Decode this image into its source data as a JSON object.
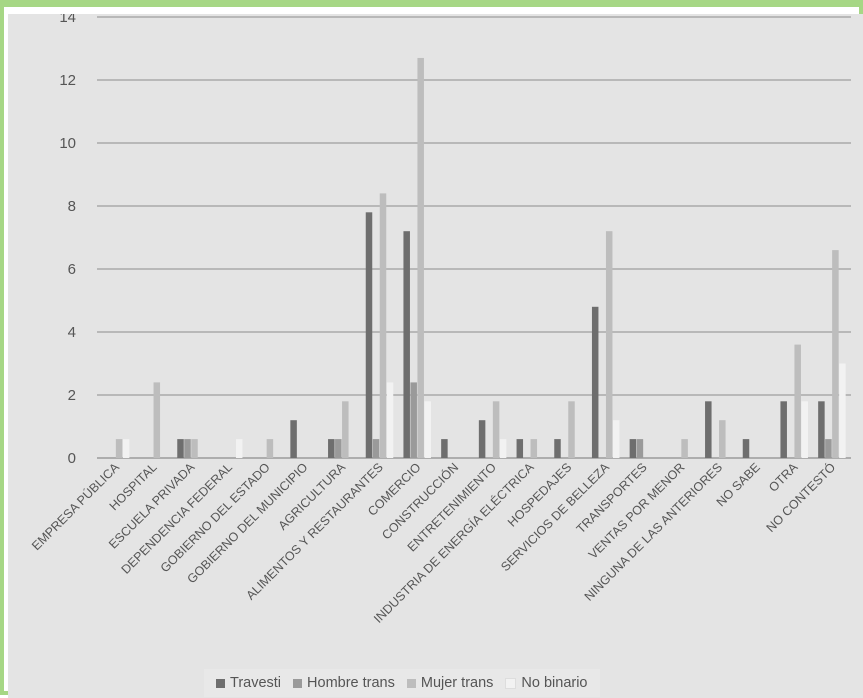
{
  "colors": {
    "frame_border": "#a6d785",
    "plot_background": "#e4e4e4",
    "gridline": "#8c8c8c",
    "text": "#555555"
  },
  "chart_data": {
    "type": "bar",
    "title": "",
    "xlabel": "",
    "ylabel": "",
    "ylim": [
      0,
      14
    ],
    "y_ticks": [
      0,
      2,
      4,
      6,
      8,
      10,
      12,
      14
    ],
    "grid": true,
    "legend_position": "bottom",
    "categories": [
      "EMPRESA PÚBLICA",
      "HOSPITAL",
      "ESCUELA PRIVADA",
      "DEPENDENCIA FEDERAL",
      "GOBIERNO DEL ESTADO",
      "GOBIERNO DEL MUNICIPIO",
      "AGRICULTURA",
      "ALIMENTOS Y RESTAURANTES",
      "COMERCIO",
      "CONSTRUCCIÓN",
      "ENTRETENIMIENTO",
      "INDUSTRIA DE ENERGÍA ELÉCTRICA",
      "HOSPEDAJES",
      "SERVICIOS DE BELLEZA",
      "TRANSPORTES",
      "VENTAS POR MENOR",
      "NINGUNA DE LAS ANTERIORES",
      "NO SABE",
      "OTRA",
      "NO CONTESTÓ"
    ],
    "series": [
      {
        "name": "Travesti",
        "color": "#6e6e6e",
        "values": [
          0,
          0,
          0.6,
          0,
          0,
          1.2,
          0.6,
          7.8,
          7.2,
          0.6,
          1.2,
          0.6,
          0.6,
          4.8,
          0.6,
          0,
          1.8,
          0.6,
          1.8,
          1.8
        ]
      },
      {
        "name": "Hombre trans",
        "color": "#9a9a9a",
        "values": [
          0,
          0,
          0.6,
          0,
          0,
          0,
          0.6,
          0.6,
          2.4,
          0,
          0,
          0,
          0,
          0,
          0.6,
          0,
          0,
          0,
          0,
          0.6
        ]
      },
      {
        "name": "Mujer trans",
        "color": "#bdbdbd",
        "values": [
          0.6,
          2.4,
          0.6,
          0,
          0.6,
          0,
          1.8,
          8.4,
          12.7,
          0,
          1.8,
          0.6,
          1.8,
          7.2,
          0,
          0.6,
          1.2,
          0,
          3.6,
          6.6
        ]
      },
      {
        "name": "No binario",
        "color": "#f2f2f2",
        "values": [
          0.6,
          0,
          0,
          0.6,
          0,
          0,
          0,
          2.4,
          1.8,
          0,
          0.6,
          0,
          0,
          1.2,
          0,
          0,
          0,
          0,
          1.8,
          3.0
        ]
      }
    ]
  }
}
